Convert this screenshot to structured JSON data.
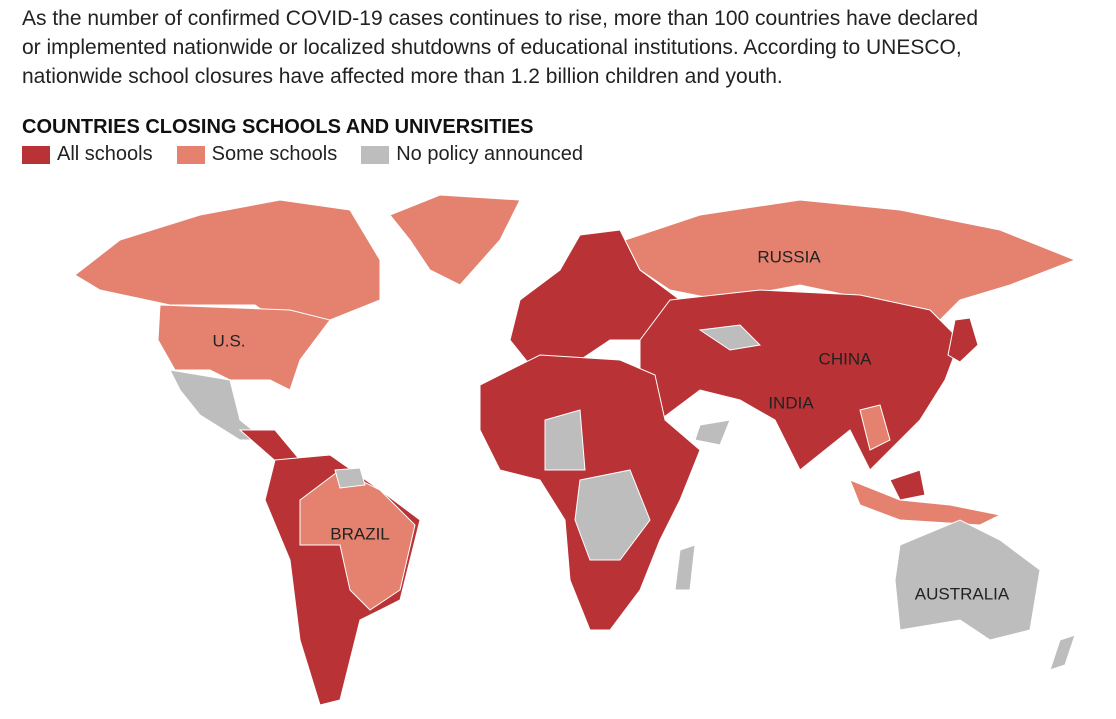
{
  "intro": [
    "As the number of confirmed COVID-19 cases continues to rise, more than 100 countries have declared",
    "or implemented nationwide or localized shutdowns of educational institutions. According to UNESCO,",
    "nationwide school closures have affected more than 1.2 billion children and youth."
  ],
  "title": "COUNTRIES CLOSING SCHOOLS AND UNIVERSITIES",
  "legend": {
    "items": [
      {
        "label": "All schools",
        "color": "#b83236"
      },
      {
        "label": "Some schools",
        "color": "#e4826f"
      },
      {
        "label": "No policy announced",
        "color": "#bdbdbd"
      }
    ]
  },
  "map": {
    "labels": [
      "RUSSIA",
      "U.S.",
      "CHINA",
      "INDIA",
      "BRAZIL",
      "AUSTRALIA"
    ]
  }
}
